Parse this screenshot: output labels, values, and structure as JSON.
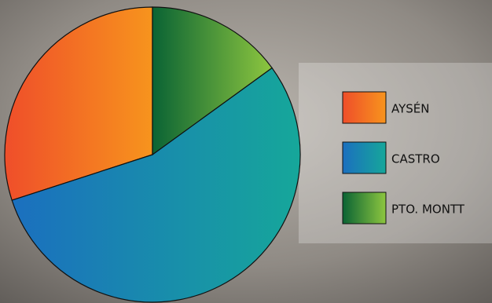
{
  "chart_data": {
    "type": "pie",
    "categories": [
      "AYSÉN",
      "CASTRO",
      "PTO. MONTT"
    ],
    "values": [
      30,
      55,
      15
    ],
    "colors": [
      [
        "#ef4e2a",
        "#f7941d"
      ],
      [
        "#1b6fbf",
        "#16a79a"
      ],
      [
        "#0a6334",
        "#8dc63f"
      ]
    ],
    "legend": "right"
  }
}
